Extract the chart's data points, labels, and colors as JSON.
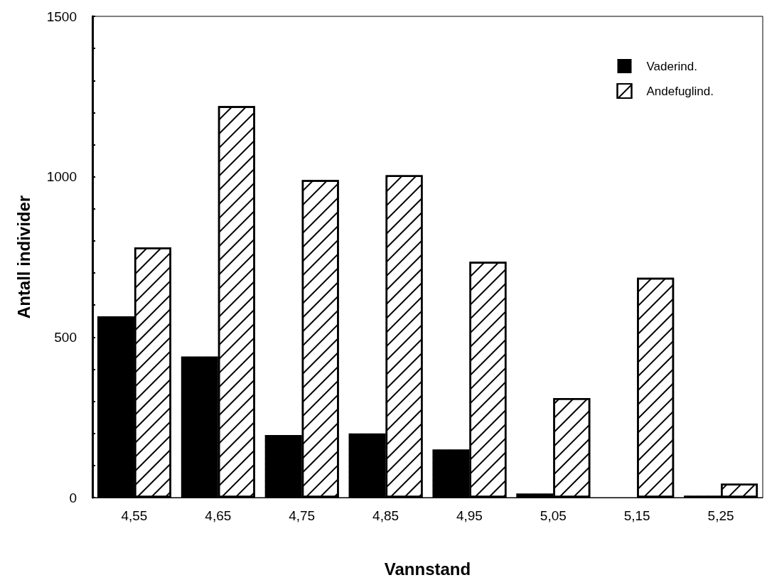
{
  "chart_data": {
    "type": "bar",
    "xlabel": "Vannstand",
    "ylabel": "Antall individer",
    "categories": [
      "4,55",
      "4,65",
      "4,75",
      "4,85",
      "4,95",
      "5,05",
      "5,15",
      "5,25"
    ],
    "series": [
      {
        "name": "Vaderind.",
        "color": "#000000",
        "values": [
          565,
          440,
          195,
          200,
          150,
          13,
          0,
          6
        ]
      },
      {
        "name": "Andefuglind.",
        "color": "#ffffff",
        "values": [
          780,
          1220,
          990,
          1005,
          735,
          310,
          685,
          43
        ]
      }
    ],
    "ylim": [
      0,
      1500
    ],
    "yticks": [
      0,
      {
        "value": 100,
        "label": null
      },
      {
        "value": 200,
        "label": null
      },
      {
        "value": 300,
        "label": null
      },
      {
        "value": 400,
        "label": null
      },
      500,
      {
        "value": 600,
        "label": null
      },
      {
        "value": 700,
        "label": null
      },
      {
        "value": 800,
        "label": null
      },
      {
        "value": 900,
        "label": null
      },
      1000,
      {
        "value": 1100,
        "label": null
      },
      {
        "value": 1200,
        "label": null
      },
      {
        "value": 1300,
        "label": null
      },
      {
        "value": 1400,
        "label": null
      },
      1500
    ],
    "grid": false,
    "legend": "top right"
  }
}
